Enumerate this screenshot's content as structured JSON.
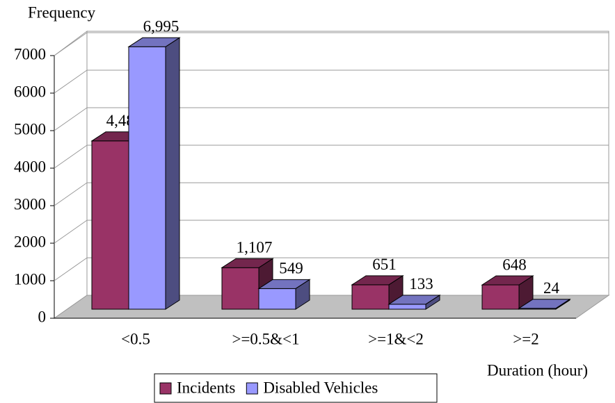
{
  "chart_data": {
    "type": "bar3d",
    "y_label": "Frequency",
    "x_label": "Duration (hour)",
    "categories": [
      "<0.5",
      ">=0.5&<1",
      ">=1&<2",
      ">=2"
    ],
    "series": [
      {
        "name": "Incidents",
        "color": "#993366",
        "values": [
          4485,
          1107,
          651,
          648
        ],
        "value_labels": [
          "4,485",
          "1,107",
          "651",
          "648"
        ]
      },
      {
        "name": "Disabled Vehicles",
        "color": "#9999ff",
        "values": [
          6995,
          549,
          133,
          24
        ],
        "value_labels": [
          "6,995",
          "549",
          "133",
          "24"
        ]
      }
    ],
    "ylim": [
      0,
      7000
    ],
    "yticks": [
      0,
      1000,
      2000,
      3000,
      4000,
      5000,
      6000,
      7000
    ],
    "grid": true,
    "legend": "bottom"
  }
}
